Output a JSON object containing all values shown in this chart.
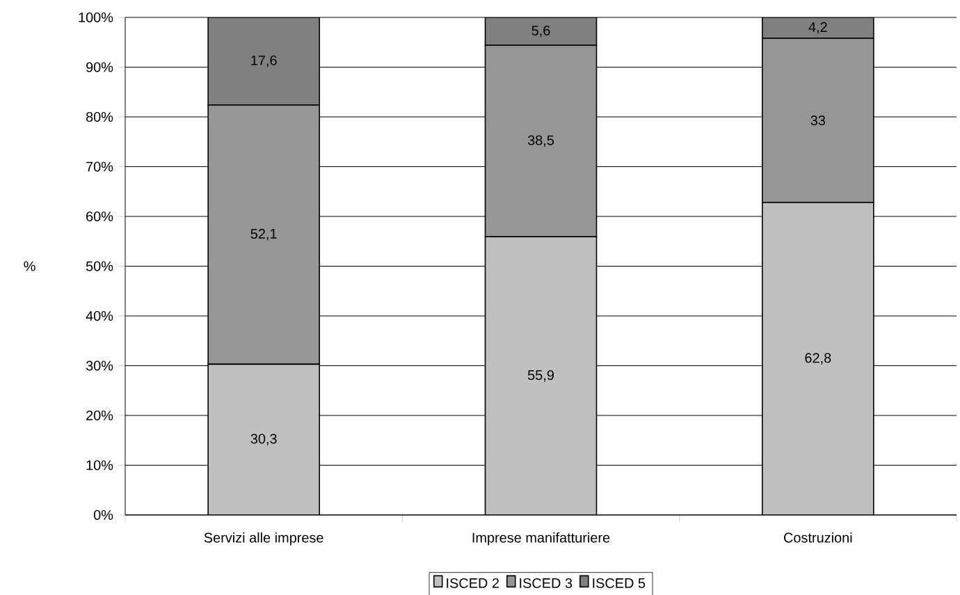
{
  "chart_data": {
    "type": "bar",
    "stacked": true,
    "ylabel": "%",
    "categories": [
      "Servizi alle imprese",
      "Imprese manifatturiere",
      "Costruzioni"
    ],
    "series": [
      {
        "name": "ISCED 2",
        "color": "#c0c0c0",
        "values": [
          30.3,
          55.9,
          62.8
        ],
        "value_labels": [
          "30,3",
          "55,9",
          "62,8"
        ]
      },
      {
        "name": "ISCED 3",
        "color": "#969696",
        "values": [
          52.1,
          38.5,
          33
        ],
        "value_labels": [
          "52,1",
          "38,5",
          "33"
        ]
      },
      {
        "name": "ISCED 5",
        "color": "#808080",
        "values": [
          17.6,
          5.6,
          4.2
        ],
        "value_labels": [
          "17,6",
          "5,6",
          "4,2"
        ]
      }
    ],
    "ylim": [
      0,
      100
    ],
    "yticks": [
      {
        "value": 0,
        "label": "0%"
      },
      {
        "value": 10,
        "label": "10%"
      },
      {
        "value": 20,
        "label": "20%"
      },
      {
        "value": 30,
        "label": "30%"
      },
      {
        "value": 40,
        "label": "40%"
      },
      {
        "value": 50,
        "label": "50%"
      },
      {
        "value": 60,
        "label": "60%"
      },
      {
        "value": 70,
        "label": "70%"
      },
      {
        "value": 80,
        "label": "80%"
      },
      {
        "value": 90,
        "label": "90%"
      },
      {
        "value": 100,
        "label": "100%"
      }
    ],
    "grid": "y",
    "legend": "bottom"
  }
}
